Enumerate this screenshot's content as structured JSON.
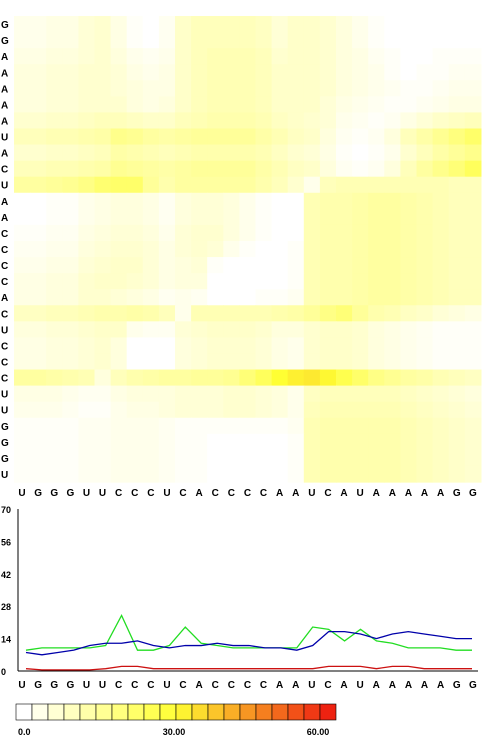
{
  "chart_data": [
    {
      "type": "heatmap",
      "row_labels": [
        "G",
        "G",
        "A",
        "A",
        "A",
        "A",
        "A",
        "U",
        "A",
        "C",
        "U",
        "A",
        "A",
        "C",
        "C",
        "C",
        "C",
        "A",
        "C",
        "U",
        "C",
        "C",
        "C",
        "U",
        "U",
        "G",
        "G",
        "G",
        "U"
      ],
      "col_labels": [
        "U",
        "G",
        "G",
        "G",
        "U",
        "U",
        "C",
        "C",
        "C",
        "U",
        "C",
        "A",
        "C",
        "C",
        "C",
        "C",
        "A",
        "A",
        "U",
        "C",
        "A",
        "U",
        "A",
        "A",
        "A",
        "A",
        "A",
        "G",
        "G"
      ],
      "rows": [
        [
          3,
          3,
          4,
          4,
          6,
          7,
          4,
          1,
          0,
          2,
          8,
          10,
          10,
          10,
          10,
          9,
          6,
          8,
          8,
          7,
          5,
          3,
          1,
          0,
          0,
          0,
          0,
          0,
          0
        ],
        [
          3,
          3,
          4,
          4,
          6,
          7,
          4,
          1,
          0,
          2,
          8,
          10,
          10,
          10,
          10,
          9,
          6,
          8,
          8,
          7,
          5,
          3,
          1,
          0,
          0,
          0,
          0,
          0,
          0
        ],
        [
          4,
          4,
          5,
          5,
          6,
          7,
          5,
          3,
          2,
          3,
          8,
          10,
          11,
          11,
          11,
          10,
          7,
          8,
          8,
          7,
          5,
          4,
          2,
          1,
          0,
          0,
          1,
          1,
          1
        ],
        [
          5,
          5,
          6,
          6,
          7,
          7,
          6,
          4,
          3,
          4,
          8,
          10,
          11,
          11,
          11,
          10,
          8,
          8,
          8,
          7,
          5,
          4,
          3,
          1,
          0,
          1,
          1,
          2,
          2
        ],
        [
          5,
          5,
          6,
          6,
          7,
          7,
          6,
          5,
          4,
          4,
          8,
          10,
          11,
          11,
          11,
          10,
          8,
          8,
          8,
          7,
          5,
          4,
          3,
          2,
          1,
          1,
          2,
          3,
          3
        ],
        [
          5,
          5,
          6,
          6,
          7,
          7,
          7,
          5,
          4,
          5,
          8,
          10,
          11,
          11,
          11,
          10,
          8,
          8,
          8,
          6,
          4,
          3,
          2,
          1,
          1,
          2,
          3,
          4,
          4
        ],
        [
          7,
          7,
          8,
          8,
          9,
          10,
          10,
          9,
          8,
          8,
          10,
          11,
          12,
          12,
          12,
          11,
          9,
          8,
          7,
          6,
          3,
          2,
          1,
          2,
          4,
          6,
          8,
          9,
          10
        ],
        [
          10,
          10,
          11,
          11,
          12,
          13,
          17,
          16,
          14,
          13,
          14,
          15,
          15,
          15,
          15,
          13,
          11,
          9,
          8,
          5,
          2,
          1,
          2,
          5,
          10,
          13,
          16,
          19,
          22
        ],
        [
          7,
          7,
          8,
          8,
          9,
          10,
          13,
          12,
          11,
          10,
          11,
          12,
          12,
          12,
          12,
          11,
          9,
          7,
          6,
          4,
          1,
          0,
          1,
          3,
          7,
          10,
          13,
          15,
          17
        ],
        [
          10,
          10,
          11,
          11,
          12,
          13,
          16,
          15,
          14,
          13,
          14,
          15,
          15,
          15,
          15,
          13,
          11,
          9,
          8,
          5,
          2,
          1,
          2,
          5,
          10,
          14,
          17,
          20,
          24
        ],
        [
          14,
          14,
          15,
          16,
          18,
          21,
          22,
          22,
          15,
          12,
          14,
          14,
          14,
          14,
          14,
          12,
          10,
          7,
          3,
          10,
          11,
          11,
          11,
          11,
          11,
          11,
          11,
          10,
          10
        ],
        [
          0,
          0,
          1,
          1,
          3,
          4,
          5,
          5,
          4,
          2,
          5,
          6,
          6,
          5,
          3,
          1,
          0,
          0,
          11,
          12,
          12,
          13,
          14,
          14,
          13,
          12,
          11,
          10,
          10
        ],
        [
          0,
          0,
          1,
          1,
          3,
          4,
          5,
          5,
          4,
          2,
          5,
          6,
          6,
          5,
          3,
          1,
          0,
          0,
          11,
          12,
          12,
          13,
          14,
          14,
          13,
          12,
          11,
          10,
          10
        ],
        [
          1,
          1,
          2,
          2,
          4,
          5,
          6,
          6,
          5,
          3,
          6,
          7,
          7,
          5,
          3,
          1,
          0,
          0,
          11,
          12,
          12,
          13,
          14,
          14,
          13,
          12,
          11,
          10,
          10
        ],
        [
          2,
          2,
          3,
          3,
          5,
          6,
          7,
          7,
          6,
          4,
          6,
          7,
          6,
          3,
          1,
          0,
          0,
          1,
          11,
          12,
          12,
          13,
          14,
          14,
          13,
          12,
          11,
          10,
          10
        ],
        [
          3,
          3,
          4,
          4,
          6,
          7,
          8,
          8,
          6,
          4,
          5,
          6,
          1,
          0,
          0,
          0,
          0,
          1,
          11,
          12,
          12,
          13,
          14,
          14,
          13,
          12,
          11,
          10,
          10
        ],
        [
          4,
          4,
          5,
          5,
          7,
          8,
          8,
          7,
          6,
          4,
          5,
          5,
          0,
          0,
          0,
          0,
          0,
          1,
          11,
          12,
          12,
          13,
          14,
          14,
          13,
          12,
          11,
          10,
          10
        ],
        [
          4,
          4,
          5,
          5,
          7,
          7,
          6,
          5,
          4,
          2,
          3,
          2,
          0,
          0,
          0,
          1,
          1,
          2,
          11,
          12,
          12,
          13,
          14,
          14,
          13,
          12,
          11,
          10,
          10
        ],
        [
          9,
          9,
          10,
          10,
          11,
          12,
          12,
          13,
          12,
          10,
          3,
          11,
          11,
          11,
          11,
          11,
          12,
          13,
          15,
          18,
          20,
          15,
          12,
          11,
          9,
          8,
          6,
          5,
          4
        ],
        [
          5,
          5,
          6,
          6,
          7,
          8,
          8,
          3,
          2,
          2,
          6,
          7,
          8,
          8,
          8,
          7,
          5,
          5,
          7,
          8,
          8,
          7,
          5,
          4,
          3,
          2,
          1,
          1,
          1
        ],
        [
          4,
          4,
          5,
          5,
          6,
          7,
          5,
          0,
          0,
          0,
          5,
          6,
          7,
          7,
          7,
          6,
          4,
          3,
          7,
          8,
          8,
          7,
          5,
          4,
          3,
          2,
          1,
          1,
          1
        ],
        [
          4,
          4,
          5,
          5,
          6,
          7,
          5,
          0,
          0,
          0,
          5,
          6,
          7,
          7,
          7,
          6,
          4,
          3,
          7,
          8,
          8,
          7,
          5,
          4,
          3,
          2,
          1,
          1,
          1
        ],
        [
          14,
          14,
          13,
          12,
          11,
          5,
          10,
          12,
          13,
          14,
          14,
          15,
          15,
          16,
          20,
          24,
          30,
          32,
          33,
          31,
          26,
          22,
          18,
          16,
          14,
          13,
          11,
          10,
          9
        ],
        [
          4,
          4,
          4,
          3,
          2,
          2,
          4,
          5,
          5,
          5,
          6,
          6,
          6,
          7,
          7,
          6,
          5,
          3,
          9,
          10,
          10,
          10,
          10,
          10,
          9,
          8,
          7,
          6,
          5
        ],
        [
          3,
          3,
          3,
          2,
          1,
          1,
          3,
          4,
          4,
          5,
          6,
          6,
          6,
          7,
          7,
          6,
          5,
          3,
          10,
          11,
          11,
          11,
          11,
          11,
          10,
          9,
          8,
          7,
          6
        ],
        [
          1,
          1,
          1,
          1,
          2,
          2,
          3,
          3,
          3,
          2,
          1,
          1,
          1,
          1,
          1,
          1,
          1,
          2,
          11,
          12,
          12,
          12,
          12,
          12,
          11,
          10,
          9,
          8,
          7
        ],
        [
          1,
          1,
          1,
          1,
          2,
          2,
          3,
          3,
          3,
          2,
          1,
          1,
          0,
          0,
          0,
          0,
          0,
          1,
          11,
          12,
          12,
          12,
          12,
          12,
          11,
          10,
          9,
          8,
          7
        ],
        [
          1,
          1,
          1,
          1,
          2,
          2,
          3,
          3,
          3,
          2,
          1,
          1,
          0,
          0,
          0,
          0,
          0,
          1,
          11,
          12,
          12,
          12,
          12,
          12,
          11,
          10,
          9,
          8,
          7
        ],
        [
          1,
          1,
          1,
          1,
          2,
          2,
          3,
          3,
          3,
          2,
          1,
          1,
          0,
          0,
          0,
          0,
          0,
          1,
          11,
          12,
          12,
          12,
          12,
          12,
          11,
          10,
          9,
          8,
          7
        ]
      ]
    },
    {
      "type": "line",
      "x": [
        "U",
        "G",
        "G",
        "G",
        "U",
        "U",
        "C",
        "C",
        "C",
        "U",
        "C",
        "A",
        "C",
        "C",
        "C",
        "C",
        "A",
        "A",
        "U",
        "C",
        "A",
        "U",
        "A",
        "A",
        "A",
        "A",
        "A",
        "G",
        "G"
      ],
      "ylim": [
        0,
        70
      ],
      "yticks": [
        0,
        14,
        28,
        42,
        56,
        70
      ],
      "series": [
        {
          "color": "#22dd22",
          "values": [
            9,
            10,
            10,
            10,
            10,
            11,
            24,
            9,
            9,
            11,
            19,
            12,
            11,
            10,
            10,
            10,
            10,
            10,
            19,
            18,
            13,
            18,
            13,
            12,
            10,
            10,
            10,
            9,
            9
          ]
        },
        {
          "color": "#0000aa",
          "values": [
            8,
            7,
            8,
            9,
            11,
            12,
            12,
            13,
            11,
            10,
            11,
            11,
            12,
            11,
            11,
            10,
            10,
            9,
            11,
            17,
            17,
            16,
            14,
            16,
            17,
            16,
            15,
            14,
            14
          ]
        },
        {
          "color": "#cc1111",
          "values": [
            1,
            0.5,
            0.5,
            0.5,
            0.5,
            1,
            2,
            2,
            1,
            1,
            1,
            1,
            1,
            1,
            1,
            1,
            1,
            1,
            1,
            2,
            2,
            2,
            1,
            2,
            2,
            1,
            1,
            1,
            1
          ]
        }
      ]
    },
    {
      "type": "legend-colorbar",
      "range": [
        0,
        60
      ],
      "tick_labels": [
        "0.0",
        "30.00",
        "60.00"
      ],
      "steps": 20,
      "color_start": "#ffffff",
      "color_mid": "#ffff33",
      "color_end": "#ee2211"
    }
  ]
}
